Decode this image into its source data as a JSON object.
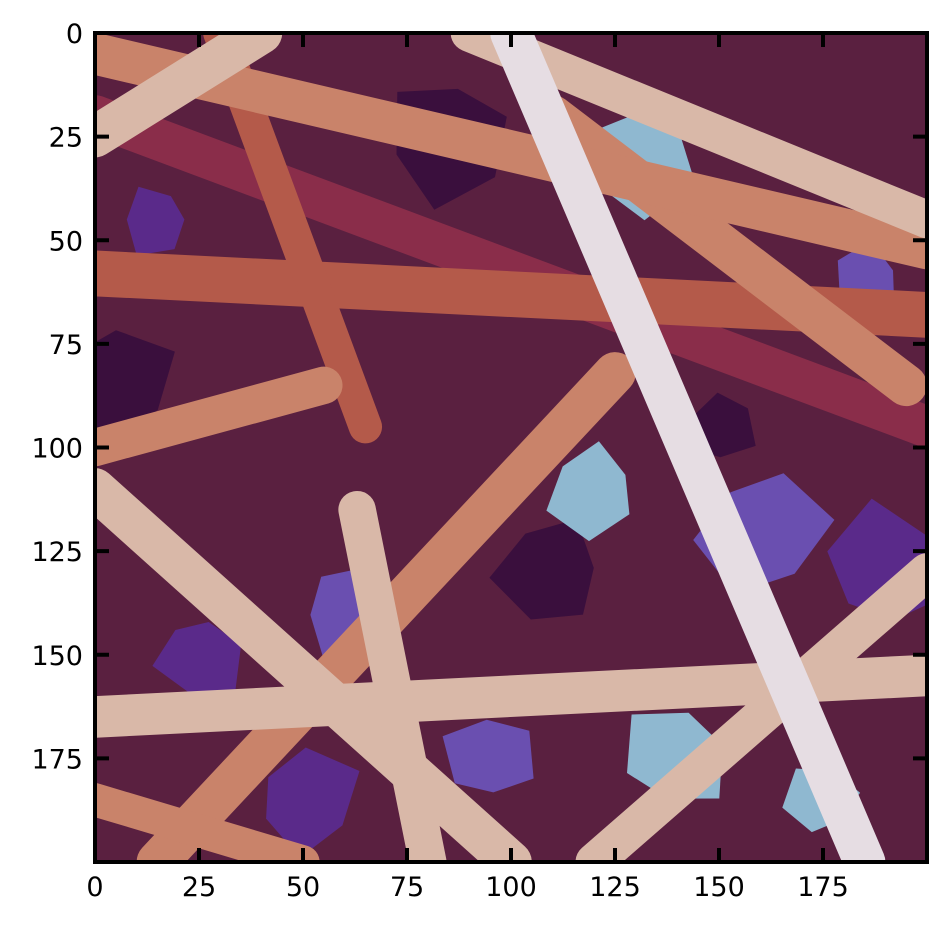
{
  "image": {
    "kind": "rendered depth map of overlapping cylindrical fibers",
    "colormap": [
      "#3a0f3d",
      "#5a2a8a",
      "#6a4fb0",
      "#8fb8d0",
      "#8a2d4a",
      "#b45a4a",
      "#c9836a",
      "#d9b8a8",
      "#e6dde3"
    ]
  },
  "axes": {
    "x_ticks": [
      "0",
      "25",
      "50",
      "75",
      "100",
      "125",
      "150",
      "175"
    ],
    "y_ticks": [
      "0",
      "25",
      "50",
      "75",
      "100",
      "125",
      "150",
      "175"
    ],
    "xlim": [
      0,
      200
    ],
    "ylim": [
      200,
      0
    ],
    "frame_color": "#000000"
  },
  "fibers": [
    {
      "x1": 0,
      "y1": 58,
      "x2": 200,
      "y2": 68,
      "depth": 0.62,
      "width": 11
    },
    {
      "x1": 0,
      "y1": 20,
      "x2": 200,
      "y2": 95,
      "depth": 0.55,
      "width": 10
    },
    {
      "x1": 110,
      "y1": 20,
      "x2": 195,
      "y2": 85,
      "depth": 0.72,
      "width": 10
    },
    {
      "x1": 0,
      "y1": 5,
      "x2": 200,
      "y2": 52,
      "depth": 0.75,
      "width": 10
    },
    {
      "x1": 90,
      "y1": 0,
      "x2": 200,
      "y2": 45,
      "depth": 0.9,
      "width": 9
    },
    {
      "x1": 30,
      "y1": 0,
      "x2": 65,
      "y2": 95,
      "depth": 0.63,
      "width": 8
    },
    {
      "x1": 0,
      "y1": 100,
      "x2": 55,
      "y2": 85,
      "depth": 0.78,
      "width": 9
    },
    {
      "x1": 15,
      "y1": 200,
      "x2": 125,
      "y2": 82,
      "depth": 0.77,
      "width": 10
    },
    {
      "x1": 0,
      "y1": 110,
      "x2": 100,
      "y2": 200,
      "depth": 0.88,
      "width": 10
    },
    {
      "x1": 100,
      "y1": 0,
      "x2": 185,
      "y2": 200,
      "depth": 0.95,
      "width": 10
    },
    {
      "x1": 63,
      "y1": 115,
      "x2": 80,
      "y2": 200,
      "depth": 0.92,
      "width": 9
    },
    {
      "x1": 0,
      "y1": 165,
      "x2": 200,
      "y2": 155,
      "depth": 0.85,
      "width": 10
    },
    {
      "x1": 120,
      "y1": 200,
      "x2": 200,
      "y2": 130,
      "depth": 0.93,
      "width": 9
    },
    {
      "x1": 0,
      "y1": 25,
      "x2": 40,
      "y2": 0,
      "depth": 0.83,
      "width": 10
    },
    {
      "x1": 0,
      "y1": 185,
      "x2": 50,
      "y2": 200,
      "depth": 0.8,
      "width": 8
    }
  ]
}
